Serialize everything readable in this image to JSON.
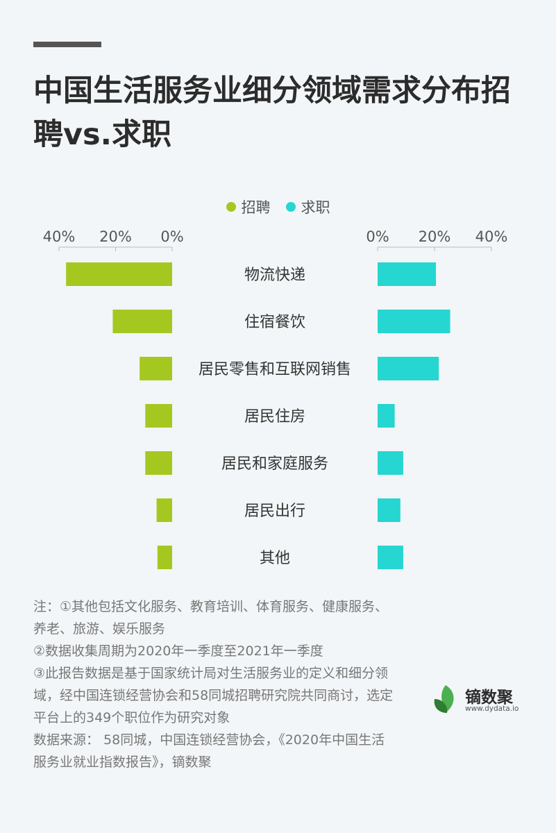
{
  "title": "中国生活服务业细分领域需求分布招聘vs.求职",
  "colors": {
    "recruit": "#a5c820",
    "job": "#26d6d0",
    "axis": "#bbbbbb"
  },
  "chart_data": {
    "type": "bar",
    "title": "中国生活服务业细分领域需求分布招聘vs.求职",
    "categories": [
      "物流快递",
      "住宿餐饮",
      "居民零售和互联网销售",
      "居民住房",
      "居民和家庭服务",
      "居民出行",
      "其他"
    ],
    "series": [
      {
        "name": "招聘",
        "values": [
          37.5,
          21,
          11.5,
          9.5,
          9.5,
          5.5,
          5.2
        ]
      },
      {
        "name": "求职",
        "values": [
          20.5,
          25.5,
          21.5,
          6,
          9,
          8,
          9
        ]
      }
    ],
    "left_ticks": [
      "40%",
      "20%",
      "0%"
    ],
    "right_ticks": [
      "0%",
      "20%",
      "40%"
    ],
    "xlim": [
      0,
      40
    ],
    "legend_position": "top-center",
    "grid": false
  },
  "notes": [
    "注：①其他包括文化服务、教育培训、体育服务、健康服务、养老、旅游、娱乐服务",
    "②数据收集周期为2020年一季度至2021年一季度",
    "③此报告数据是基于国家统计局对生活服务业的定义和细分领域，经中国连锁经营协会和58同城招聘研究院共同商讨，选定平台上的349个职位作为研究对象",
    "数据来源： 58同城，中国连锁经营协会，《2020年中国生活服务业就业指数报告》，镝数聚"
  ],
  "logo": {
    "name": "镝数聚",
    "url": "www.dydata.io"
  }
}
